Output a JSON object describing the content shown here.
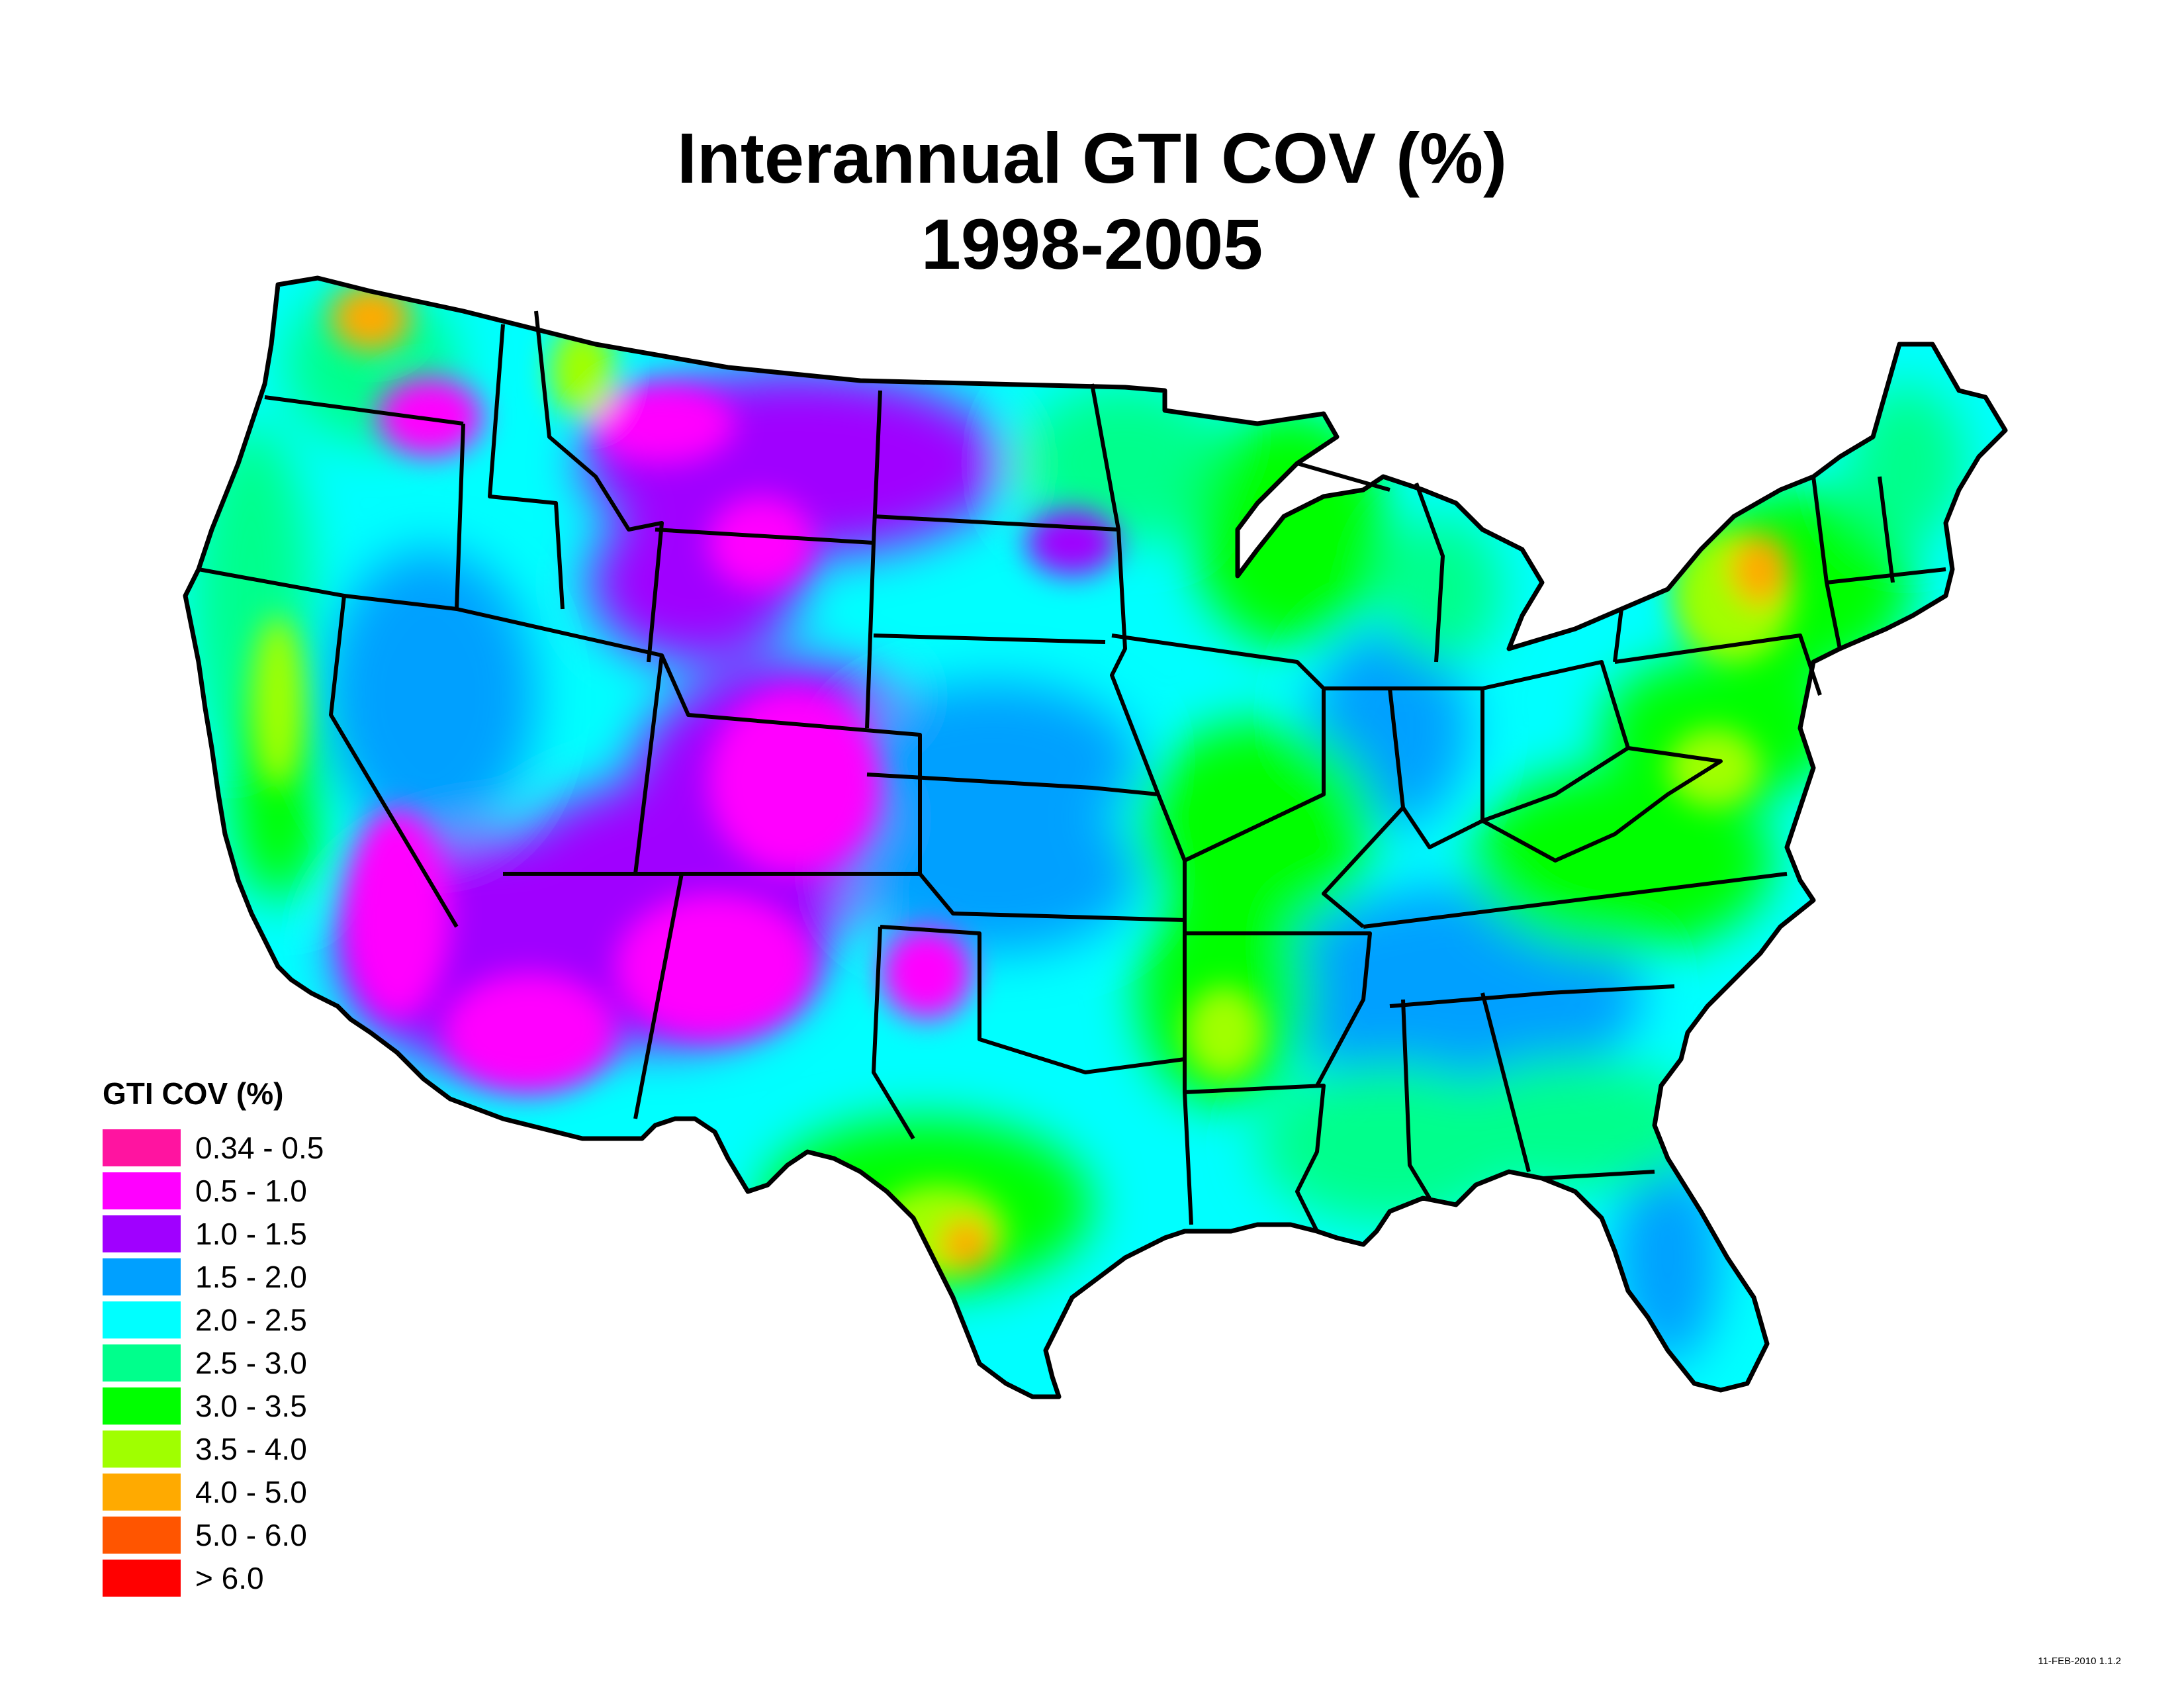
{
  "title_line1": "Interannual GTI COV (%)",
  "title_line2": "1998-2005",
  "legend": {
    "title": "GTI COV (%)",
    "items": [
      {
        "label": "0.34 - 0.5",
        "color": "#ff14a0"
      },
      {
        "label": "0.5 - 1.0",
        "color": "#ff00ff"
      },
      {
        "label": "1.0 - 1.5",
        "color": "#a000ff"
      },
      {
        "label": "1.5 - 2.0",
        "color": "#00a0ff"
      },
      {
        "label": "2.0 - 2.5",
        "color": "#00ffff"
      },
      {
        "label": "2.5 - 3.0",
        "color": "#00ff8c"
      },
      {
        "label": "3.0 - 3.5",
        "color": "#00ff00"
      },
      {
        "label": "3.5 - 4.0",
        "color": "#a0ff00"
      },
      {
        "label": "4.0 - 5.0",
        "color": "#ffaa00"
      },
      {
        "label": "5.0 - 6.0",
        "color": "#ff5500"
      },
      {
        "label": "> 6.0",
        "color": "#ff0000"
      }
    ]
  },
  "version_stamp": "11-FEB-2010 1.1.2"
}
